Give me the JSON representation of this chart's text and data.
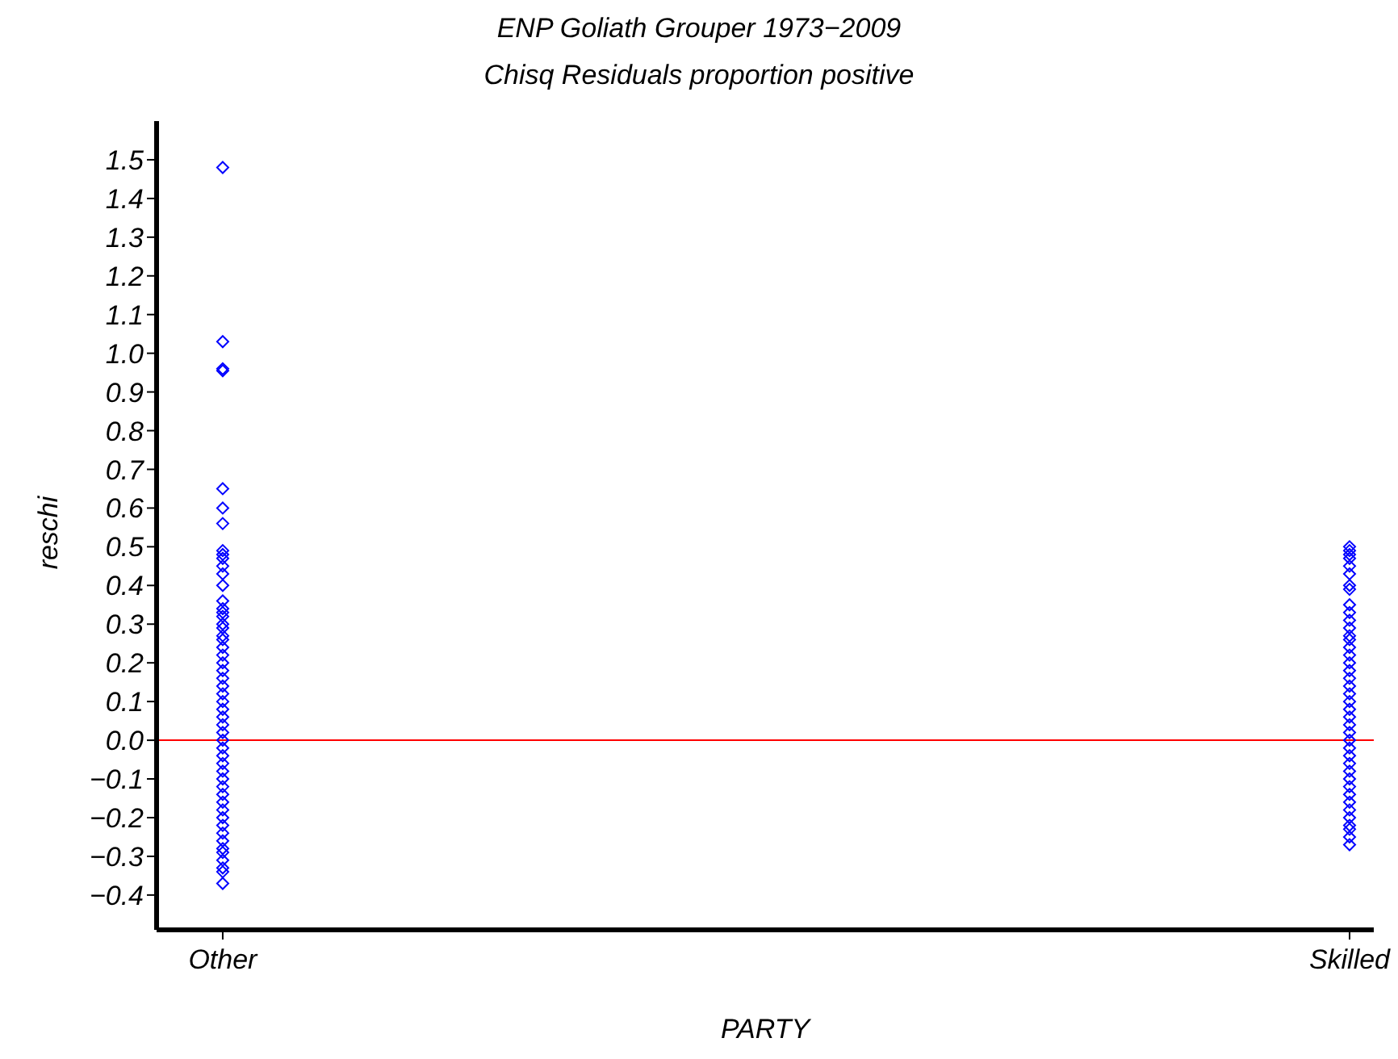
{
  "chart_data": {
    "type": "scatter",
    "title": "ENP Goliath Grouper 1973−2009",
    "subtitle": "Chisq Residuals proportion positive",
    "xlabel": "PARTY",
    "ylabel": "reschi",
    "categories": [
      "Other",
      "Skilled"
    ],
    "series": [
      {
        "color": "#0000ff",
        "x": [
          "Other",
          "Other",
          "Other",
          "Other",
          "Other",
          "Other",
          "Other",
          "Other",
          "Other",
          "Other",
          "Other",
          "Other",
          "Other",
          "Other",
          "Other",
          "Other",
          "Other",
          "Other",
          "Other",
          "Other",
          "Other",
          "Other",
          "Other",
          "Other",
          "Other",
          "Other",
          "Other",
          "Other",
          "Other",
          "Other",
          "Other",
          "Other",
          "Other",
          "Other",
          "Other",
          "Other",
          "Other",
          "Other",
          "Other",
          "Other",
          "Other",
          "Other",
          "Other",
          "Other",
          "Other",
          "Other",
          "Other",
          "Other",
          "Other",
          "Other",
          "Other",
          "Other",
          "Other"
        ],
        "values": [
          1.48,
          1.03,
          0.96,
          0.955,
          0.65,
          0.6,
          0.56,
          0.49,
          0.48,
          0.47,
          0.45,
          0.43,
          0.4,
          0.36,
          0.34,
          0.33,
          0.32,
          0.3,
          0.29,
          0.27,
          0.26,
          0.24,
          0.22,
          0.2,
          0.18,
          0.16,
          0.14,
          0.12,
          0.1,
          0.08,
          0.06,
          0.04,
          0.02,
          0,
          -0.02,
          -0.04,
          -0.06,
          -0.08,
          -0.1,
          -0.12,
          -0.14,
          -0.16,
          -0.18,
          -0.2,
          -0.22,
          -0.24,
          -0.26,
          -0.28,
          -0.29,
          -0.31,
          -0.33,
          -0.34,
          -0.37
        ]
      },
      {
        "color": "#0000ff",
        "x": [
          "Skilled",
          "Skilled",
          "Skilled",
          "Skilled",
          "Skilled",
          "Skilled",
          "Skilled",
          "Skilled",
          "Skilled",
          "Skilled",
          "Skilled",
          "Skilled",
          "Skilled",
          "Skilled",
          "Skilled",
          "Skilled",
          "Skilled",
          "Skilled",
          "Skilled",
          "Skilled",
          "Skilled",
          "Skilled",
          "Skilled",
          "Skilled",
          "Skilled",
          "Skilled",
          "Skilled",
          "Skilled",
          "Skilled",
          "Skilled",
          "Skilled",
          "Skilled",
          "Skilled",
          "Skilled",
          "Skilled",
          "Skilled",
          "Skilled",
          "Skilled",
          "Skilled",
          "Skilled",
          "Skilled"
        ],
        "values": [
          0.5,
          0.49,
          0.48,
          0.47,
          0.45,
          0.43,
          0.4,
          0.39,
          0.35,
          0.33,
          0.31,
          0.29,
          0.27,
          0.26,
          0.24,
          0.22,
          0.2,
          0.18,
          0.16,
          0.14,
          0.12,
          0.1,
          0.08,
          0.06,
          0.04,
          0.02,
          0,
          -0.02,
          -0.04,
          -0.06,
          -0.08,
          -0.1,
          -0.12,
          -0.14,
          -0.16,
          -0.18,
          -0.2,
          -0.22,
          -0.23,
          -0.25,
          -0.27
        ]
      }
    ],
    "ylim": [
      -0.49,
      1.6
    ],
    "yticks": [
      {
        "value": -0.4,
        "label": "−0.4"
      },
      {
        "value": -0.3,
        "label": "−0.3"
      },
      {
        "value": -0.2,
        "label": "−0.2"
      },
      {
        "value": -0.1,
        "label": "−0.1"
      },
      {
        "value": 0,
        "label": "0.0"
      },
      0.1,
      0.2,
      0.3,
      0.4,
      0.5,
      0.6,
      0.7,
      0.8,
      0.9,
      {
        "value": 1,
        "label": "1.0"
      },
      1.1,
      1.2,
      1.3,
      1.4,
      1.5
    ],
    "ref_lines": [
      {
        "axis": "y",
        "value": 0,
        "color": "#ff0000"
      }
    ],
    "marker": "diamond",
    "grid": false,
    "legend": false
  }
}
